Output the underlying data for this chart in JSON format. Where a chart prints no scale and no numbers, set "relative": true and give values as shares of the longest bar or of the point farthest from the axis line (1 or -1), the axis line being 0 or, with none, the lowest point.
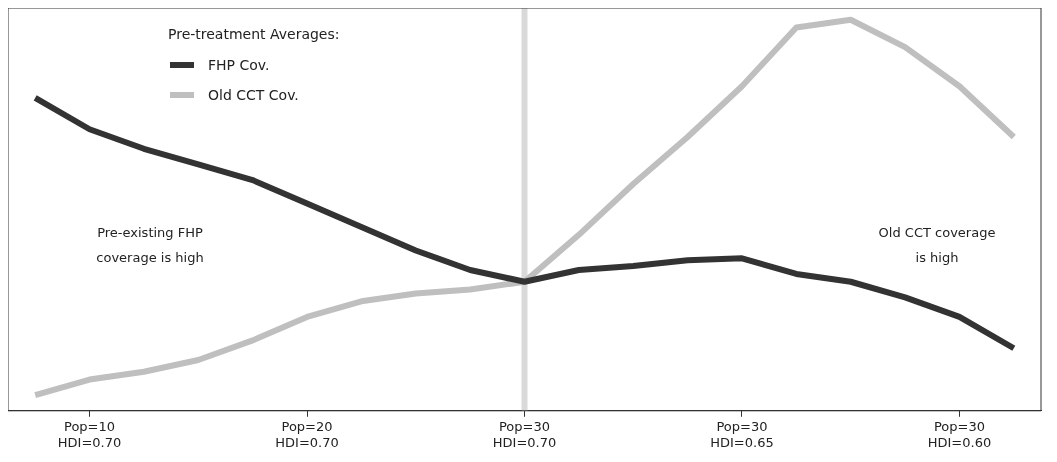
{
  "chart_data": {
    "type": "line",
    "relative": true,
    "categories": [
      null,
      "Pop=10\nHDI=0.70",
      null,
      null,
      null,
      "Pop=20\nHDI=0.70",
      null,
      null,
      null,
      "Pop=30\nHDI=0.70",
      null,
      null,
      null,
      "Pop=30\nHDI=0.65",
      null,
      null,
      null,
      "Pop=30\nHDI=0.60",
      null
    ],
    "series": [
      {
        "name": "FHP Cov.",
        "color": "#333333",
        "values": [
          0.8,
          0.72,
          0.67,
          0.63,
          0.59,
          0.53,
          0.47,
          0.41,
          0.36,
          0.33,
          0.36,
          0.37,
          0.385,
          0.39,
          0.35,
          0.33,
          0.29,
          0.24,
          0.16
        ]
      },
      {
        "name": "Old CCT Cov.",
        "color": "#bfbfbf",
        "values": [
          0.04,
          0.08,
          0.1,
          0.13,
          0.18,
          0.24,
          0.28,
          0.3,
          0.31,
          0.33,
          0.45,
          0.58,
          0.7,
          0.83,
          0.98,
          1,
          0.93,
          0.83,
          0.7
        ]
      }
    ],
    "legend": "top left",
    "legend_title": "Pre-treatment Averages:",
    "marker": "none",
    "line_style": "solid",
    "grid": false,
    "ref_lines": [
      {
        "axis": "x",
        "value": "Pop=30\nHDI=0.70",
        "color": "#d9d9d9"
      }
    ],
    "annotations": [
      "Pre-existing FHP coverage is high",
      "Old CCT coverage is high"
    ]
  }
}
